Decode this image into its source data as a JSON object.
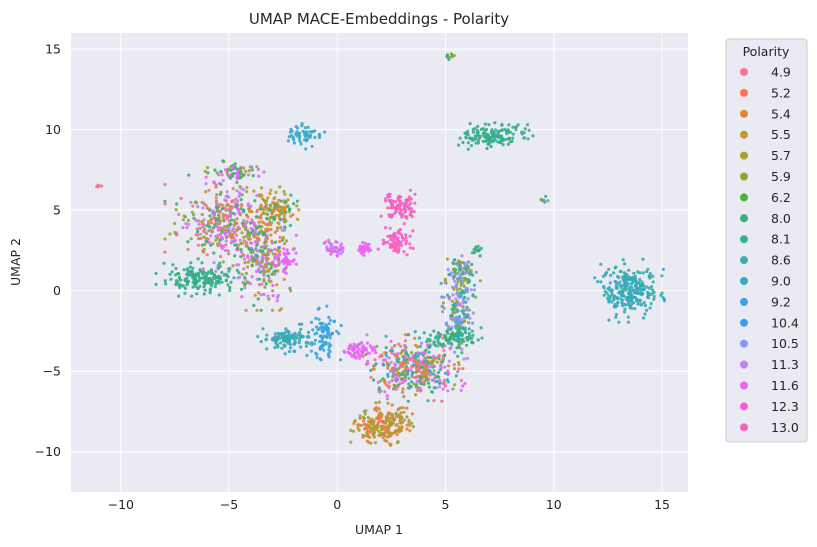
{
  "chart_data": {
    "type": "scatter",
    "title": "UMAP MACE-Embeddings - Polarity",
    "xlabel": "UMAP 1",
    "ylabel": "UMAP 2",
    "xlim": [
      -12.3,
      16.2
    ],
    "ylim": [
      -12.5,
      16.0
    ],
    "xticks": [
      -10,
      -5,
      0,
      5,
      10,
      15
    ],
    "yticks": [
      -10,
      -5,
      0,
      5,
      10,
      15
    ],
    "grid": true,
    "background": "#eaeaf2",
    "legend": {
      "title": "Polarity",
      "placement": "outside-right",
      "entries": [
        {
          "label": "4.9",
          "color": "#f77189"
        },
        {
          "label": "5.2",
          "color": "#f7754f"
        },
        {
          "label": "5.4",
          "color": "#dc8932"
        },
        {
          "label": "5.5",
          "color": "#c39532"
        },
        {
          "label": "5.7",
          "color": "#ae9d31"
        },
        {
          "label": "5.9",
          "color": "#97a431"
        },
        {
          "label": "6.2",
          "color": "#50b131"
        },
        {
          "label": "8.0",
          "color": "#33b07a"
        },
        {
          "label": "8.1",
          "color": "#35ad9c"
        },
        {
          "label": "8.6",
          "color": "#36ada4"
        },
        {
          "label": "9.0",
          "color": "#38a9c5"
        },
        {
          "label": "9.2",
          "color": "#3ba3ec"
        },
        {
          "label": "10.4",
          "color": "#3d9cf0"
        },
        {
          "label": "10.5",
          "color": "#8197f4"
        },
        {
          "label": "11.3",
          "color": "#bb83f4"
        },
        {
          "label": "11.6",
          "color": "#e866f4"
        },
        {
          "label": "12.3",
          "color": "#f45fd0"
        },
        {
          "label": "13.0",
          "color": "#f565b0"
        }
      ]
    },
    "clusters": [
      {
        "cx": -5.2,
        "cy": 4.2,
        "rx": 2.4,
        "ry": 2.6,
        "n": 420,
        "colors": [
          "#f77189",
          "#bb83f4",
          "#97a431",
          "#33b07a",
          "#c39532",
          "#e866f4"
        ]
      },
      {
        "cx": -3.5,
        "cy": 2.0,
        "rx": 1.4,
        "ry": 2.8,
        "n": 240,
        "colors": [
          "#bb83f4",
          "#97a431",
          "#dc8932",
          "#e866f4",
          "#33b07a"
        ]
      },
      {
        "cx": -2.8,
        "cy": 5.0,
        "rx": 1.0,
        "ry": 1.2,
        "n": 120,
        "colors": [
          "#c39532",
          "#ae9d31",
          "#dc8932",
          "#33b07a"
        ]
      },
      {
        "cx": -6.3,
        "cy": 0.7,
        "rx": 1.8,
        "ry": 0.9,
        "n": 170,
        "colors": [
          "#33b07a",
          "#35ad9c"
        ]
      },
      {
        "cx": -4.6,
        "cy": 7.4,
        "rx": 1.3,
        "ry": 0.6,
        "n": 70,
        "colors": [
          "#e866f4",
          "#97a431",
          "#33b07a"
        ]
      },
      {
        "cx": -2.4,
        "cy": 2.0,
        "rx": 0.5,
        "ry": 0.8,
        "n": 40,
        "colors": [
          "#e866f4"
        ]
      },
      {
        "cx": 2.9,
        "cy": 5.2,
        "rx": 0.8,
        "ry": 0.9,
        "n": 90,
        "colors": [
          "#f565b0",
          "#f45fd0"
        ]
      },
      {
        "cx": 2.7,
        "cy": 3.0,
        "rx": 0.7,
        "ry": 0.8,
        "n": 70,
        "colors": [
          "#f565b0",
          "#f45fd0"
        ]
      },
      {
        "cx": 7.2,
        "cy": 9.6,
        "rx": 1.6,
        "ry": 0.9,
        "n": 140,
        "colors": [
          "#33b07a",
          "#36ada4"
        ]
      },
      {
        "cx": 13.5,
        "cy": 0.0,
        "rx": 1.4,
        "ry": 1.7,
        "n": 260,
        "colors": [
          "#38a9c5",
          "#36ada4"
        ]
      },
      {
        "cx": -1.5,
        "cy": 9.6,
        "rx": 0.8,
        "ry": 0.7,
        "n": 50,
        "colors": [
          "#38a9c5"
        ]
      },
      {
        "cx": -2.3,
        "cy": -3.0,
        "rx": 1.2,
        "ry": 0.8,
        "n": 110,
        "colors": [
          "#38a9c5",
          "#36ada4"
        ]
      },
      {
        "cx": -0.6,
        "cy": -2.8,
        "rx": 0.7,
        "ry": 1.6,
        "n": 90,
        "colors": [
          "#38a9c5",
          "#3ba3ec"
        ]
      },
      {
        "cx": -0.1,
        "cy": 2.6,
        "rx": 0.5,
        "ry": 0.5,
        "n": 40,
        "colors": [
          "#e866f4",
          "#bb83f4"
        ]
      },
      {
        "cx": 1.2,
        "cy": 2.6,
        "rx": 0.4,
        "ry": 0.4,
        "n": 30,
        "colors": [
          "#e866f4"
        ]
      },
      {
        "cx": 1.0,
        "cy": -3.7,
        "rx": 0.8,
        "ry": 0.6,
        "n": 60,
        "colors": [
          "#e866f4"
        ]
      },
      {
        "cx": 3.6,
        "cy": -4.8,
        "rx": 2.1,
        "ry": 1.8,
        "n": 440,
        "colors": [
          "#e866f4",
          "#bb83f4",
          "#97a431",
          "#33b07a",
          "#f77189",
          "#dc8932",
          "#38a9c5"
        ]
      },
      {
        "cx": 5.6,
        "cy": -1.2,
        "rx": 0.7,
        "ry": 2.5,
        "n": 170,
        "colors": [
          "#33b07a",
          "#8197f4",
          "#38a9c5",
          "#97a431",
          "#bb83f4"
        ]
      },
      {
        "cx": 5.8,
        "cy": 1.1,
        "rx": 0.7,
        "ry": 1.2,
        "n": 80,
        "colors": [
          "#33b07a",
          "#8197f4",
          "#97a431"
        ]
      },
      {
        "cx": 5.2,
        "cy": -2.9,
        "rx": 1.7,
        "ry": 0.6,
        "n": 90,
        "colors": [
          "#33b07a",
          "#35ad9c"
        ]
      },
      {
        "cx": 2.1,
        "cy": -8.3,
        "rx": 1.4,
        "ry": 1.2,
        "n": 230,
        "colors": [
          "#dc8932",
          "#97a431",
          "#ae9d31",
          "#f7754f"
        ]
      },
      {
        "cx": 5.2,
        "cy": 14.5,
        "rx": 0.2,
        "ry": 0.25,
        "n": 10,
        "colors": [
          "#97a431",
          "#33b07a"
        ]
      },
      {
        "cx": 9.5,
        "cy": 5.7,
        "rx": 0.2,
        "ry": 0.3,
        "n": 8,
        "colors": [
          "#38a9c5",
          "#97a431"
        ]
      },
      {
        "cx": -11.0,
        "cy": 6.5,
        "rx": 0.15,
        "ry": 0.1,
        "n": 5,
        "colors": [
          "#f77189"
        ]
      },
      {
        "cx": 6.5,
        "cy": 2.5,
        "rx": 0.3,
        "ry": 0.3,
        "n": 12,
        "colors": [
          "#33b07a"
        ]
      }
    ]
  }
}
